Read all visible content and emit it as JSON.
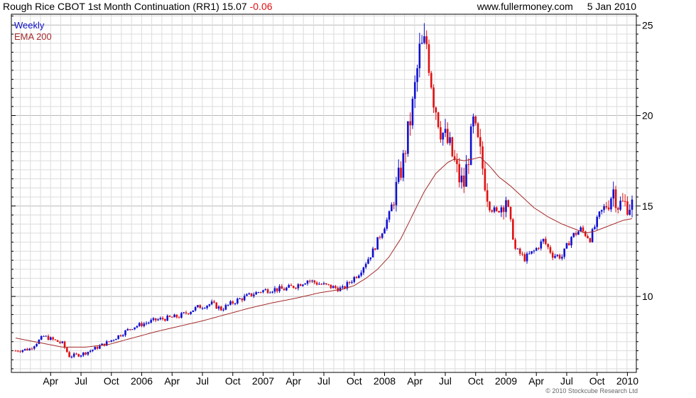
{
  "header": {
    "symbol": "Rough Rice CBOT 1st Month Continuation (RR1)",
    "last": "15.07",
    "change": "-0.06",
    "site": "www.fullermoney.com",
    "date": "5 Jan 2010"
  },
  "legend": {
    "weekly": "Weekly",
    "ema": "EMA 200"
  },
  "copyright": "© 2010 Stockcube Research Ltd",
  "colors": {
    "up": "#1010d0",
    "down": "#e01010",
    "ema": "#a52a2a",
    "grid": "#dcdcdc",
    "frame": "#000000"
  },
  "chart_data": {
    "type": "candlestick",
    "title": "Rough Rice CBOT 1st Month Continuation (RR1)",
    "frequency": "Weekly",
    "ylim": [
      5.8,
      25.6
    ],
    "y_ticks": [
      10,
      15,
      20,
      25
    ],
    "x_tick_labels": [
      "Apr",
      "Jul",
      "Oct",
      "2006",
      "Apr",
      "Jul",
      "Oct",
      "2007",
      "Apr",
      "Jul",
      "Oct",
      "2008",
      "Apr",
      "Jul",
      "Oct",
      "2009",
      "Apr",
      "Jul",
      "Oct",
      "2010"
    ],
    "x_tick_index": [
      15,
      28,
      41,
      54,
      67,
      80,
      93,
      106,
      119,
      132,
      145,
      158,
      171,
      184,
      197,
      210,
      223,
      236,
      249,
      262
    ],
    "x_range_index": [
      0,
      264
    ],
    "price_anchors": [
      [
        0,
        7.0
      ],
      [
        6,
        7.1
      ],
      [
        12,
        7.8
      ],
      [
        20,
        7.4
      ],
      [
        23,
        6.7
      ],
      [
        28,
        6.8
      ],
      [
        32,
        7.0
      ],
      [
        40,
        7.5
      ],
      [
        50,
        8.3
      ],
      [
        60,
        8.7
      ],
      [
        70,
        8.9
      ],
      [
        78,
        9.4
      ],
      [
        84,
        9.6
      ],
      [
        88,
        9.3
      ],
      [
        95,
        9.8
      ],
      [
        105,
        10.3
      ],
      [
        110,
        10.4
      ],
      [
        115,
        10.4
      ],
      [
        120,
        10.6
      ],
      [
        125,
        10.9
      ],
      [
        130,
        10.7
      ],
      [
        136,
        10.5
      ],
      [
        140,
        10.4
      ],
      [
        147,
        11.3
      ],
      [
        153,
        12.5
      ],
      [
        160,
        14.5
      ],
      [
        166,
        17.5
      ],
      [
        170,
        20.5
      ],
      [
        173,
        23.5
      ],
      [
        176,
        24.0
      ],
      [
        179,
        21.0
      ],
      [
        182,
        19.3
      ],
      [
        186,
        18.2
      ],
      [
        190,
        16.5
      ],
      [
        192,
        16.2
      ],
      [
        196,
        19.5
      ],
      [
        199,
        17.8
      ],
      [
        203,
        15.0
      ],
      [
        206,
        14.6
      ],
      [
        210,
        15.5
      ],
      [
        214,
        12.6
      ],
      [
        218,
        12.1
      ],
      [
        222,
        12.5
      ],
      [
        226,
        13.1
      ],
      [
        230,
        12.3
      ],
      [
        234,
        12.2
      ],
      [
        238,
        13.3
      ],
      [
        242,
        13.7
      ],
      [
        246,
        13.2
      ],
      [
        250,
        14.5
      ],
      [
        254,
        15.3
      ],
      [
        256,
        15.9
      ],
      [
        258,
        15.1
      ],
      [
        261,
        15.1
      ],
      [
        264,
        15.07
      ]
    ],
    "ema200": [
      [
        0,
        7.7
      ],
      [
        10,
        7.45
      ],
      [
        20,
        7.2
      ],
      [
        30,
        7.2
      ],
      [
        40,
        7.35
      ],
      [
        50,
        7.7
      ],
      [
        60,
        8.05
      ],
      [
        70,
        8.35
      ],
      [
        80,
        8.65
      ],
      [
        90,
        9.0
      ],
      [
        100,
        9.35
      ],
      [
        110,
        9.65
      ],
      [
        120,
        9.9
      ],
      [
        130,
        10.2
      ],
      [
        140,
        10.4
      ],
      [
        145,
        10.6
      ],
      [
        150,
        11.0
      ],
      [
        155,
        11.5
      ],
      [
        160,
        12.2
      ],
      [
        165,
        13.2
      ],
      [
        170,
        14.5
      ],
      [
        175,
        15.8
      ],
      [
        180,
        16.8
      ],
      [
        185,
        17.4
      ],
      [
        188,
        17.6
      ],
      [
        192,
        17.5
      ],
      [
        196,
        17.6
      ],
      [
        199,
        17.7
      ],
      [
        203,
        17.2
      ],
      [
        207,
        16.6
      ],
      [
        212,
        16.1
      ],
      [
        217,
        15.5
      ],
      [
        222,
        14.9
      ],
      [
        228,
        14.4
      ],
      [
        234,
        14.0
      ],
      [
        240,
        13.7
      ],
      [
        244,
        13.5
      ],
      [
        248,
        13.6
      ],
      [
        252,
        13.8
      ],
      [
        256,
        14.0
      ],
      [
        260,
        14.2
      ],
      [
        264,
        14.3
      ]
    ]
  }
}
